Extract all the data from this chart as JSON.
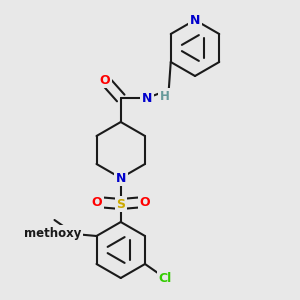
{
  "bg_color": "#e8e8e8",
  "bond_color": "#1a1a1a",
  "bond_width": 1.5,
  "dbo": 0.012,
  "colors": {
    "N": "#0000cc",
    "O": "#ff0000",
    "S": "#ccaa00",
    "Cl": "#33cc00",
    "C": "#1a1a1a",
    "H": "#669999"
  },
  "font_size": 8.5
}
